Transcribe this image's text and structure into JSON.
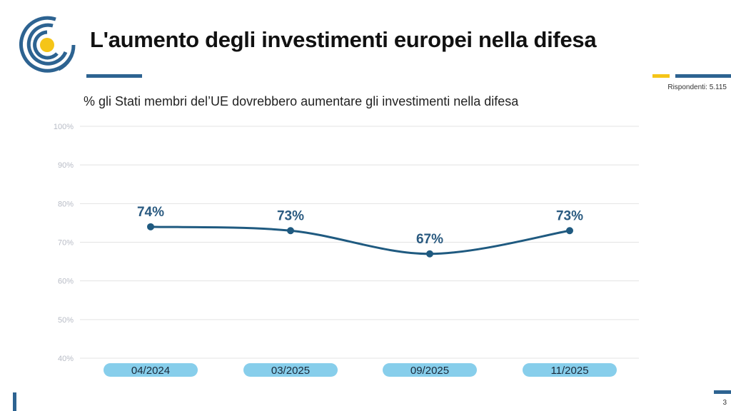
{
  "header": {
    "title": "L'aumento degli investimenti europei nella difesa",
    "respondents": "Rispondenti: 5.115",
    "page": "3"
  },
  "colors": {
    "brand_blue": "#2d6391",
    "accent_yellow": "#f5c518",
    "line": "#1f5a80",
    "pill": "#87ceeb"
  },
  "chart_data": {
    "type": "line",
    "title": "% gli Stati membri del’UE dovrebbero aumentare gli investimenti nella difesa",
    "categories": [
      "04/2024",
      "03/2025",
      "09/2025",
      "11/2025"
    ],
    "values": [
      74,
      73,
      67,
      73
    ],
    "data_labels": [
      "74%",
      "73%",
      "67%",
      "73%"
    ],
    "ylim": [
      40,
      100
    ],
    "yticks": [
      40,
      50,
      60,
      70,
      80,
      90,
      100
    ],
    "ytick_labels": [
      "40%",
      "50%",
      "60%",
      "70%",
      "80%",
      "90%",
      "100%"
    ],
    "grid": true,
    "smooth": true
  }
}
